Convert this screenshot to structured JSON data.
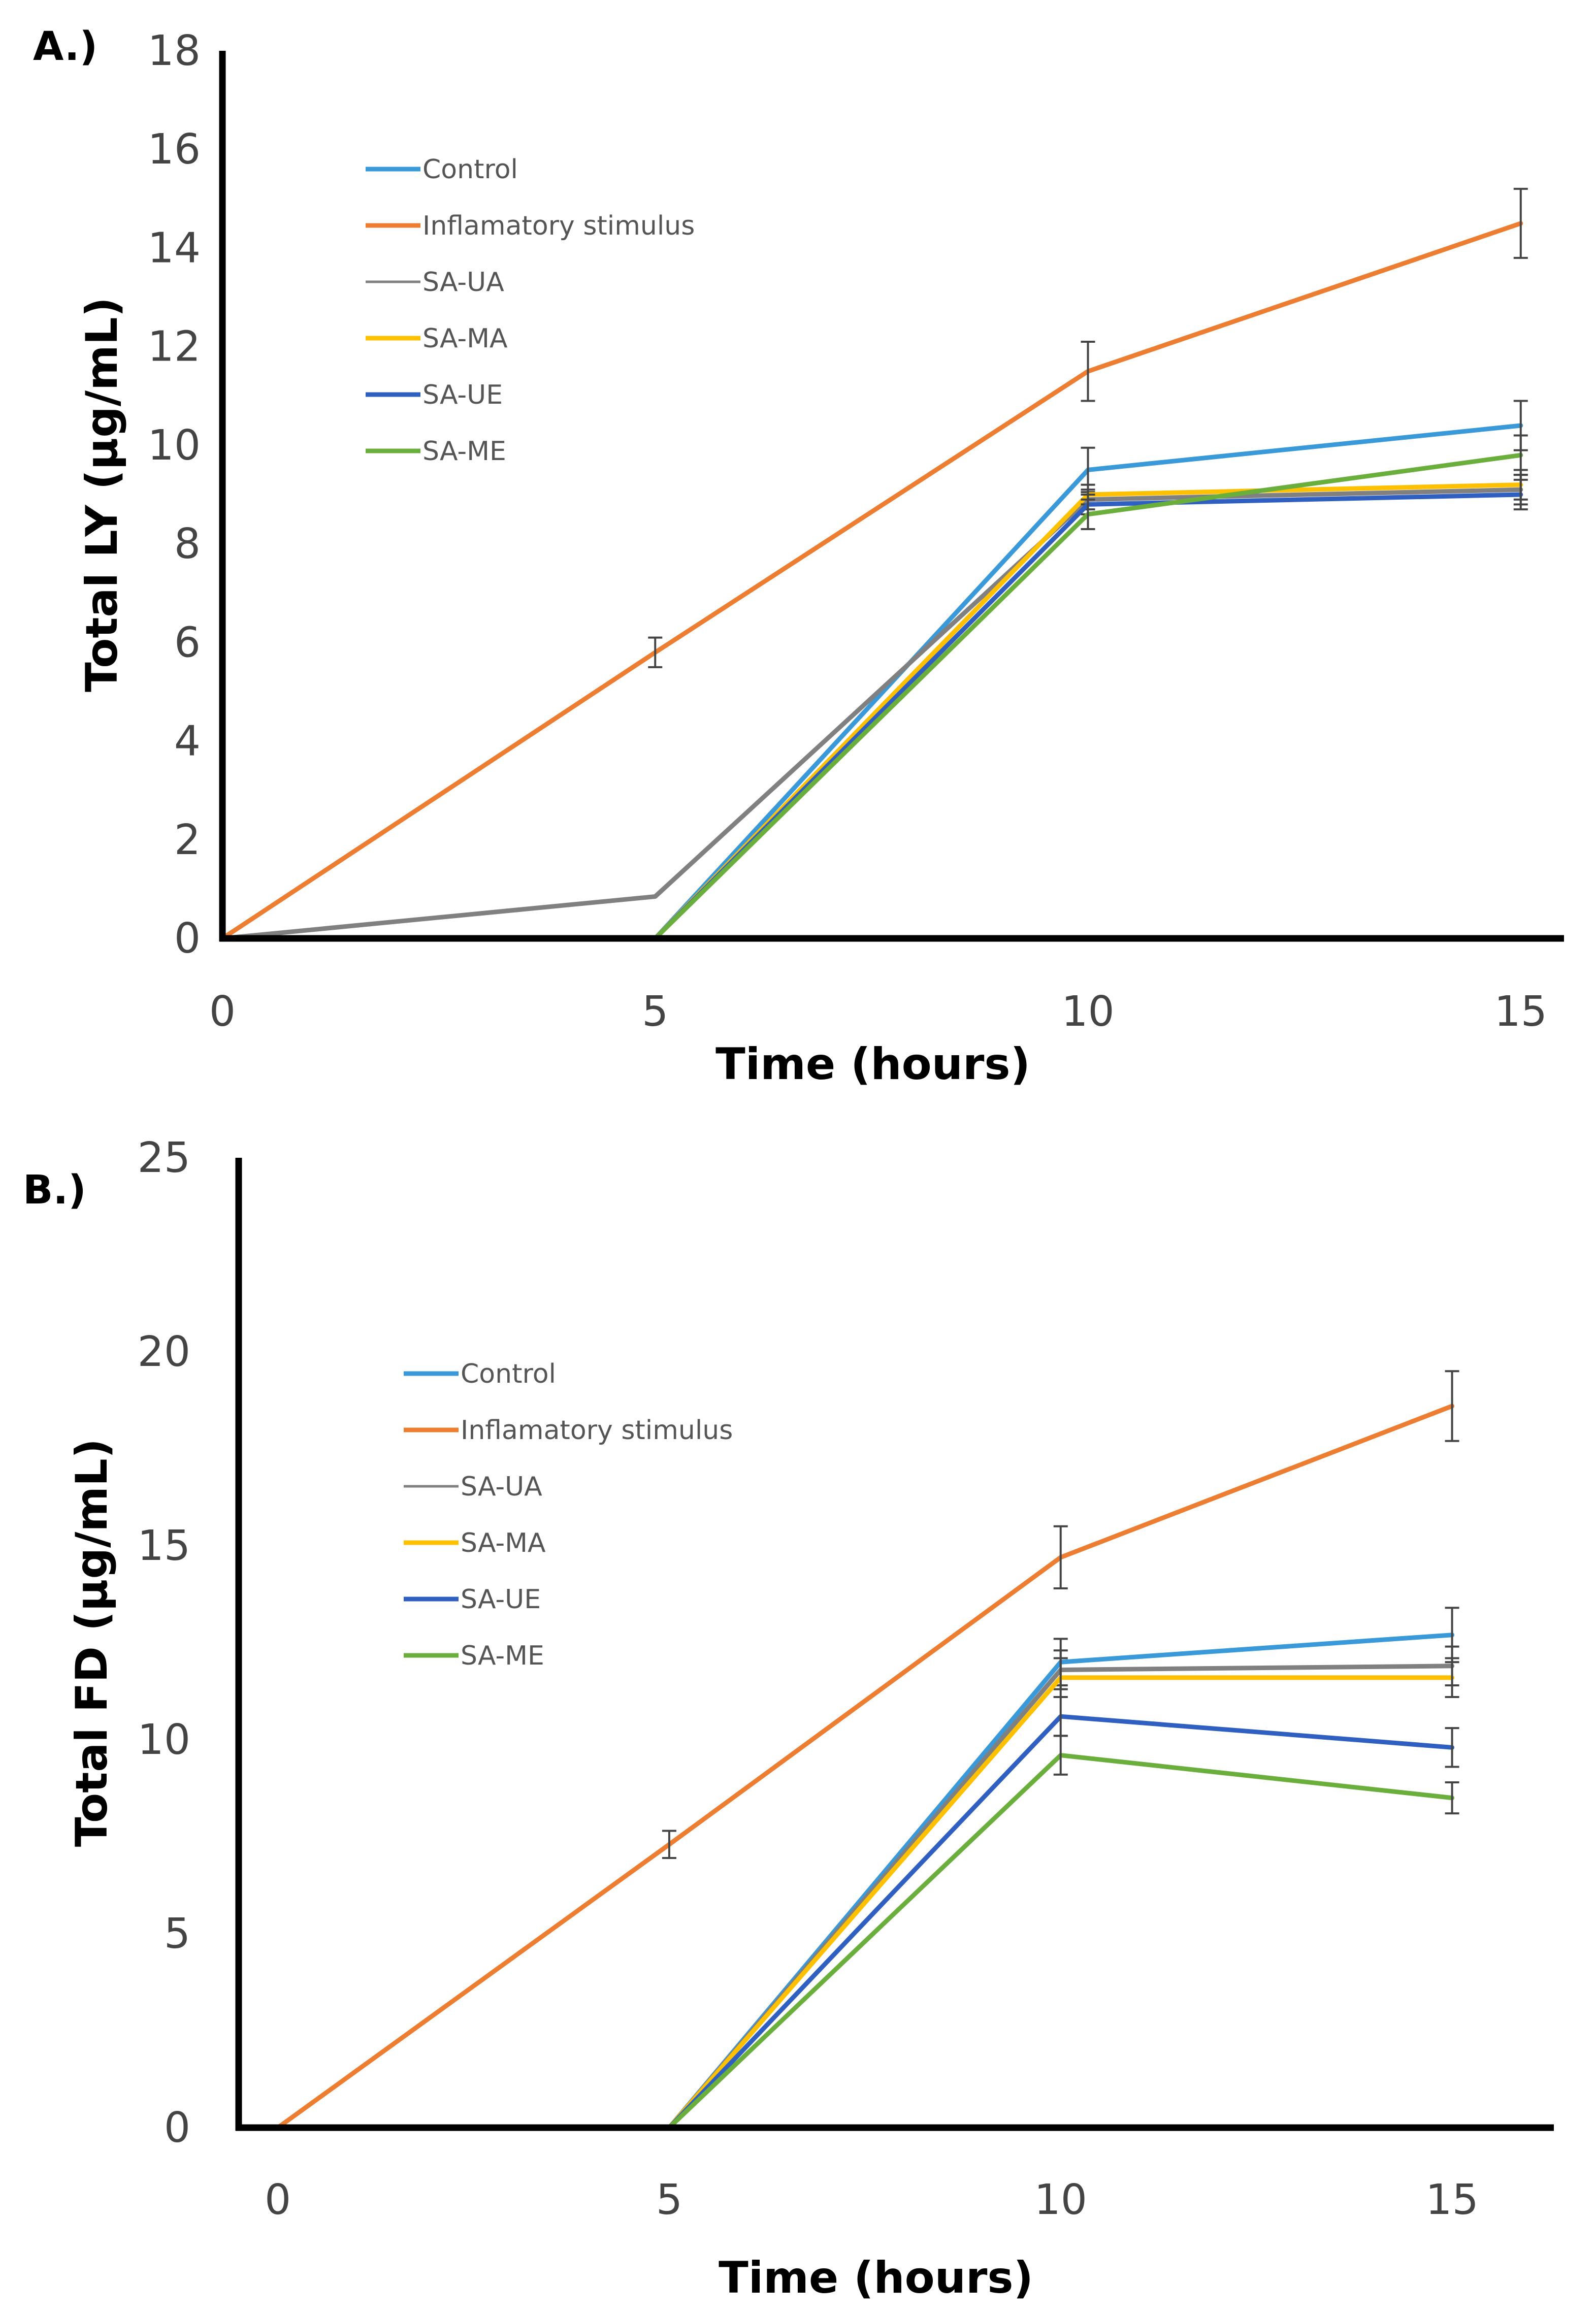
{
  "chart_data": [
    {
      "type": "line",
      "panel_label": "A.)",
      "xlabel": "Time (hours)",
      "ylabel": "Total LY (µg/mL)",
      "x": [
        0,
        5,
        10,
        15
      ],
      "x_ticks": [
        "0",
        "5",
        "10",
        "15"
      ],
      "xlim": [
        0,
        15.5
      ],
      "ylim": [
        0,
        18
      ],
      "y_ticks": [
        "0",
        "2",
        "4",
        "6",
        "8",
        "10",
        "12",
        "14",
        "16",
        "18"
      ],
      "legend_position": "top-left",
      "series": [
        {
          "name": "Control",
          "color": "#3a9ad9",
          "values": [
            0,
            0,
            9.5,
            10.4
          ],
          "errors": [
            0,
            0,
            0.45,
            0.5
          ]
        },
        {
          "name": "Inflamatory stimulus",
          "color": "#ed7d31",
          "values": [
            0,
            5.8,
            11.5,
            14.5
          ],
          "errors": [
            0,
            0.3,
            0.6,
            0.7
          ]
        },
        {
          "name": "SA-UA",
          "color": "#808080",
          "values": [
            0,
            0.85,
            8.9,
            9.1
          ],
          "errors": [
            0,
            0,
            0.2,
            0.3
          ]
        },
        {
          "name": "SA-MA",
          "color": "#ffc000",
          "values": [
            0,
            0,
            9.0,
            9.2
          ],
          "errors": [
            0,
            0,
            0.2,
            0.3
          ]
        },
        {
          "name": "SA-UE",
          "color": "#2e5fc1",
          "values": [
            0,
            0,
            8.8,
            9.0
          ],
          "errors": [
            0,
            0,
            0.2,
            0.3
          ]
        },
        {
          "name": "SA-ME",
          "color": "#6aaf3c",
          "values": [
            0,
            0,
            8.6,
            9.8
          ],
          "errors": [
            0,
            0,
            0.3,
            0.4
          ]
        }
      ]
    },
    {
      "type": "line",
      "panel_label": "B.)",
      "xlabel": "Time (hours)",
      "ylabel": "Total FD (µg/mL)",
      "x": [
        0,
        5,
        10,
        15
      ],
      "x_ticks": [
        "0",
        "5",
        "10",
        "15"
      ],
      "xlim": [
        -0.5,
        16.3
      ],
      "ylim": [
        0,
        25
      ],
      "y_ticks": [
        "0",
        "5",
        "10",
        "15",
        "20",
        "25"
      ],
      "legend_position": "top-left",
      "series": [
        {
          "name": "Control",
          "color": "#3a9ad9",
          "values": [
            0,
            0,
            12.0,
            12.7
          ],
          "errors": [
            0,
            0,
            0.6,
            0.7
          ]
        },
        {
          "name": "Inflamatory stimulus",
          "color": "#ed7d31",
          "values": [
            0,
            7.3,
            14.7,
            18.6
          ],
          "errors": [
            0,
            0.35,
            0.8,
            0.9
          ]
        },
        {
          "name": "SA-UA",
          "color": "#808080",
          "values": [
            0,
            0,
            11.8,
            11.9
          ],
          "errors": [
            0,
            0,
            0.5,
            0.5
          ]
        },
        {
          "name": "SA-MA",
          "color": "#ffc000",
          "values": [
            0,
            0,
            11.6,
            11.6
          ],
          "errors": [
            0,
            0,
            0.5,
            0.5
          ]
        },
        {
          "name": "SA-UE",
          "color": "#2e5fc1",
          "values": [
            0,
            0,
            10.6,
            9.8
          ],
          "errors": [
            0,
            0,
            0.5,
            0.5
          ]
        },
        {
          "name": "SA-ME",
          "color": "#6aaf3c",
          "values": [
            0,
            0,
            9.6,
            8.5
          ],
          "errors": [
            0,
            0,
            0.5,
            0.4
          ]
        }
      ]
    }
  ]
}
